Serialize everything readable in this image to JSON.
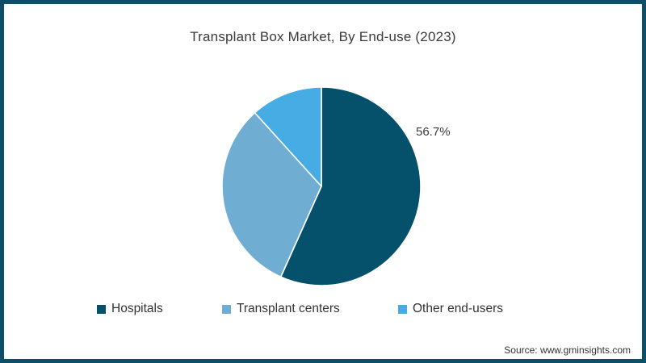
{
  "title": "Transplant Box Market, By End-use (2023)",
  "source": "Source: www.gminsights.com",
  "colors": {
    "frame_border": "#0d4f68",
    "title_text": "#3a3a3a",
    "label_text": "#3c3c3c",
    "slice_separator": "#ffffff"
  },
  "chart_data": {
    "type": "pie",
    "title": "Transplant Box Market, By End-use (2023)",
    "labels": [
      "Hospitals",
      "Transplant centers",
      "Other end-users"
    ],
    "values": [
      56.7,
      31.6,
      11.7
    ],
    "slice_colors": [
      "#05506b",
      "#6fadd2",
      "#47ace3"
    ],
    "start_angle_deg": 0,
    "direction": "clockwise",
    "data_labels_shown": [
      "56.7%",
      "",
      ""
    ],
    "shown_data_label": "56.7%",
    "legend_position": "bottom",
    "radius_px": 123
  }
}
